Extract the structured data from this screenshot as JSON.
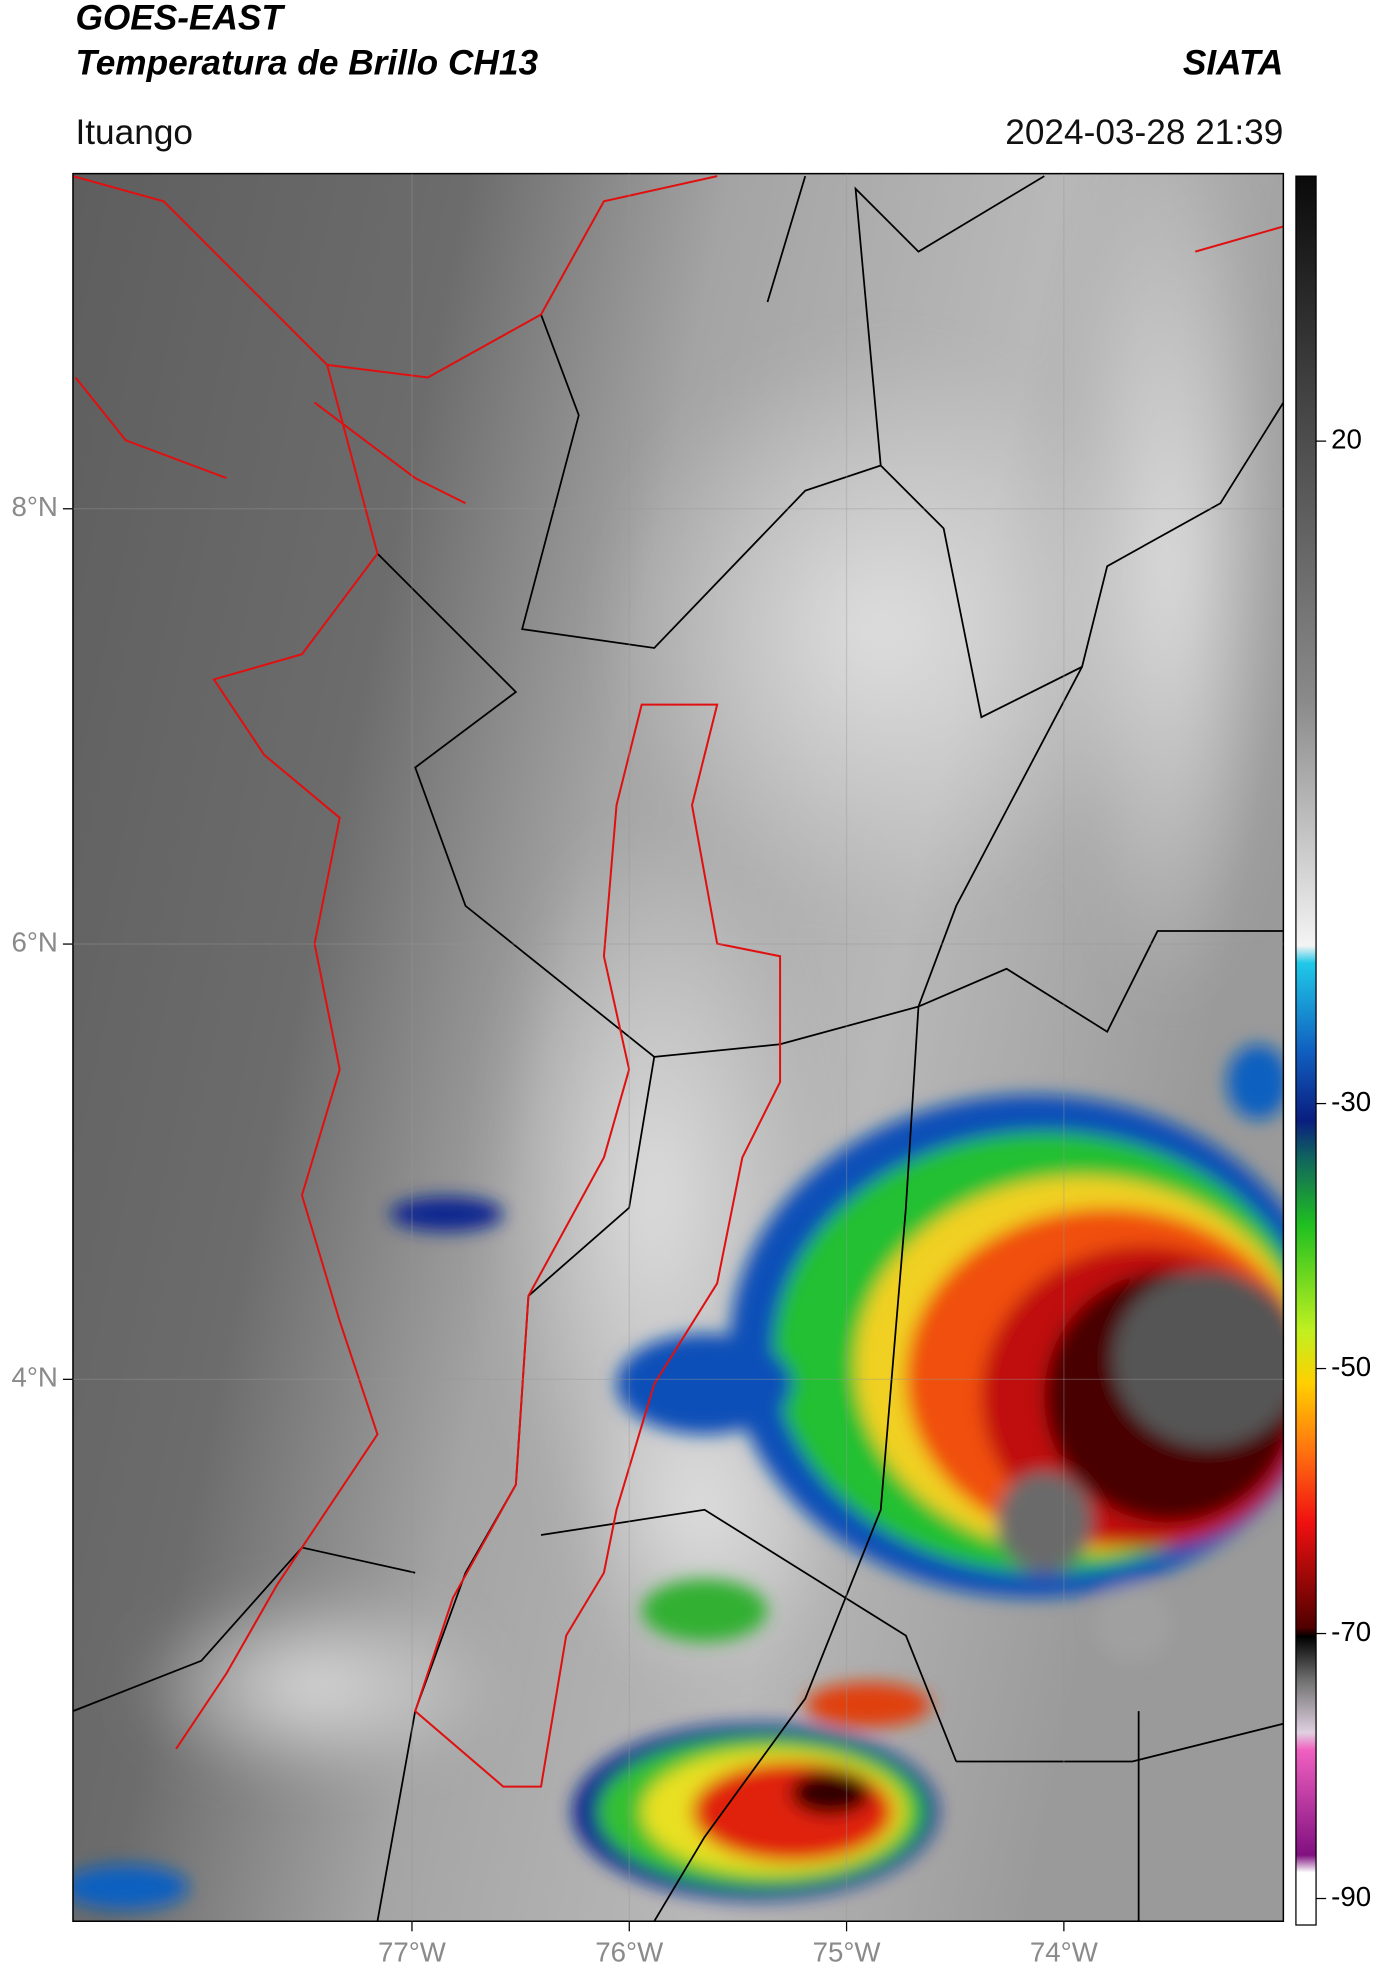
{
  "header": {
    "title": "GOES-EAST",
    "subtitle": "Temperatura de Brillo CH13",
    "source": "SIATA",
    "region": "Ituango",
    "datetime": "2024-03-28 21:39"
  },
  "map": {
    "xlim": [
      -78.56,
      -72.99
    ],
    "ylim": [
      1.51,
      9.54
    ],
    "xticks": [
      {
        "value": -77,
        "label": "77°W"
      },
      {
        "value": -76,
        "label": "76°W"
      },
      {
        "value": -75,
        "label": "75°W"
      },
      {
        "value": -74,
        "label": "74°W"
      }
    ],
    "yticks": [
      {
        "value": 8,
        "label": "8°N"
      },
      {
        "value": 6,
        "label": "6°N"
      },
      {
        "value": 4,
        "label": "4°N"
      }
    ]
  },
  "colorbar": {
    "clim": [
      -92,
      40
    ],
    "ticks": [
      20,
      -30,
      -50,
      -70,
      -90
    ]
  }
}
